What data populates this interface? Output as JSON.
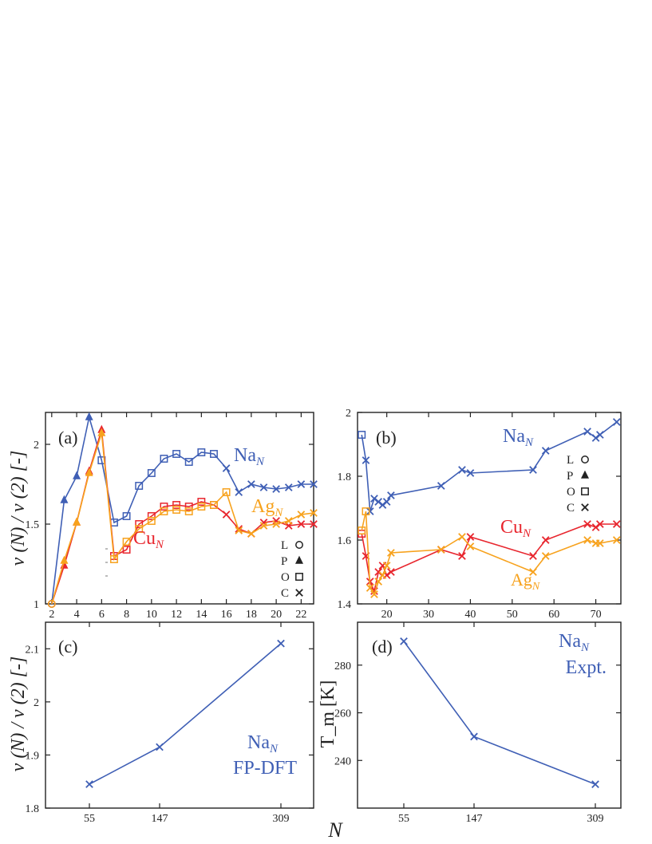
{
  "shared_xlabel": "N",
  "legend": {
    "entries": [
      {
        "label": "L",
        "marker": "circle"
      },
      {
        "label": "P",
        "marker": "triangle"
      },
      {
        "label": "O",
        "marker": "square"
      },
      {
        "label": "C",
        "marker": "cross"
      }
    ]
  },
  "colors": {
    "Na": "#3f5fb5",
    "Cu": "#e8262e",
    "Ag": "#f7a21d",
    "axis": "#222222"
  },
  "chart_data": [
    {
      "panel": "(a)",
      "type": "line",
      "ylabel": "v (N) / v (2) [-]",
      "xlim": [
        1.5,
        23
      ],
      "ylim": [
        1,
        2.2
      ],
      "xticks": [
        2,
        4,
        6,
        8,
        10,
        12,
        14,
        16,
        18,
        20,
        22
      ],
      "yticks": [
        1,
        1.5,
        2
      ],
      "series": [
        {
          "name": "Na",
          "color": "#3f5fb5",
          "x": [
            2,
            3,
            4,
            5,
            6,
            7,
            8,
            9,
            10,
            11,
            12,
            13,
            14,
            15,
            16,
            17,
            18,
            19,
            20,
            21,
            22,
            23
          ],
          "y": [
            1.0,
            1.65,
            1.8,
            2.17,
            1.9,
            1.51,
            1.55,
            1.74,
            1.82,
            1.91,
            1.94,
            1.89,
            1.95,
            1.94,
            1.85,
            1.7,
            1.75,
            1.73,
            1.72,
            1.73,
            1.75,
            1.75
          ],
          "markers": [
            "circle",
            "triangle",
            "triangle",
            "triangle",
            "square",
            "square",
            "square",
            "square",
            "square",
            "square",
            "square",
            "square",
            "square",
            "square",
            "cross",
            "cross",
            "cross",
            "cross",
            "cross",
            "cross",
            "cross",
            "cross"
          ]
        },
        {
          "name": "Cu",
          "color": "#e8262e",
          "x": [
            2,
            3,
            4,
            5,
            6,
            7,
            8,
            9,
            10,
            11,
            12,
            13,
            14,
            15,
            16,
            17,
            18,
            19,
            20,
            21,
            22,
            23
          ],
          "y": [
            1.0,
            1.24,
            1.51,
            1.83,
            2.09,
            1.3,
            1.34,
            1.5,
            1.55,
            1.61,
            1.62,
            1.61,
            1.64,
            1.62,
            1.56,
            1.47,
            1.44,
            1.51,
            1.52,
            1.49,
            1.5,
            1.5
          ],
          "markers": [
            "circle",
            "triangle",
            "triangle",
            "triangle",
            "triangle",
            "square",
            "square",
            "square",
            "square",
            "square",
            "square",
            "square",
            "square",
            "square",
            "cross",
            "cross",
            "cross",
            "cross",
            "cross",
            "cross",
            "cross",
            "cross"
          ]
        },
        {
          "name": "Ag",
          "color": "#f7a21d",
          "x": [
            2,
            3,
            4,
            5,
            6,
            7,
            8,
            9,
            10,
            11,
            12,
            13,
            14,
            15,
            16,
            17,
            18,
            19,
            20,
            21,
            22,
            23
          ],
          "y": [
            1.0,
            1.27,
            1.51,
            1.82,
            2.07,
            1.28,
            1.39,
            1.47,
            1.52,
            1.58,
            1.59,
            1.58,
            1.61,
            1.62,
            1.7,
            1.46,
            1.44,
            1.49,
            1.5,
            1.52,
            1.56,
            1.57
          ],
          "markers": [
            "circle",
            "triangle",
            "triangle",
            "triangle",
            "triangle",
            "square",
            "square",
            "square",
            "square",
            "square",
            "square",
            "square",
            "square",
            "square",
            "square",
            "cross",
            "cross",
            "cross",
            "cross",
            "cross",
            "cross",
            "cross"
          ]
        }
      ],
      "annotations": {
        "panel": "(a)",
        "Na": "Na",
        "Cu": "Cu",
        "Ag": "Ag",
        "subscript": "N"
      }
    },
    {
      "panel": "(b)",
      "type": "line",
      "xlim": [
        13,
        76
      ],
      "ylim": [
        1.4,
        2.0
      ],
      "xticks": [
        20,
        30,
        40,
        50,
        60,
        70
      ],
      "yticks": [
        1.4,
        1.6,
        1.8,
        2
      ],
      "series": [
        {
          "name": "Na",
          "color": "#3f5fb5",
          "x": [
            14,
            15,
            16,
            17,
            18,
            19,
            20,
            21,
            33,
            38,
            40,
            55,
            58,
            68,
            70,
            71,
            75
          ],
          "y": [
            1.93,
            1.85,
            1.69,
            1.73,
            1.72,
            1.71,
            1.72,
            1.74,
            1.77,
            1.82,
            1.81,
            1.82,
            1.88,
            1.94,
            1.92,
            1.93,
            1.97
          ],
          "markers": [
            "square",
            "cross",
            "cross",
            "cross",
            "cross",
            "cross",
            "cross",
            "cross",
            "cross",
            "cross",
            "cross",
            "cross",
            "cross",
            "cross",
            "cross",
            "cross",
            "cross"
          ]
        },
        {
          "name": "Cu",
          "color": "#e8262e",
          "x": [
            14,
            15,
            16,
            17,
            18,
            19,
            20,
            21,
            33,
            38,
            40,
            55,
            58,
            68,
            70,
            71,
            75
          ],
          "y": [
            1.62,
            1.55,
            1.47,
            1.44,
            1.5,
            1.52,
            1.49,
            1.5,
            1.57,
            1.55,
            1.61,
            1.55,
            1.6,
            1.65,
            1.64,
            1.65,
            1.65
          ],
          "markers": [
            "square",
            "cross",
            "cross",
            "cross",
            "cross",
            "cross",
            "cross",
            "cross",
            "cross",
            "cross",
            "cross",
            "cross",
            "cross",
            "cross",
            "cross",
            "cross",
            "cross"
          ]
        },
        {
          "name": "Ag",
          "color": "#f7a21d",
          "x": [
            14,
            15,
            16,
            17,
            18,
            19,
            20,
            21,
            33,
            38,
            40,
            55,
            58,
            68,
            70,
            71,
            75
          ],
          "y": [
            1.63,
            1.69,
            1.45,
            1.43,
            1.47,
            1.49,
            1.52,
            1.56,
            1.57,
            1.61,
            1.58,
            1.5,
            1.55,
            1.6,
            1.59,
            1.59,
            1.6
          ],
          "markers": [
            "square",
            "square",
            "cross",
            "cross",
            "cross",
            "cross",
            "cross",
            "cross",
            "cross",
            "cross",
            "cross",
            "cross",
            "cross",
            "cross",
            "cross",
            "cross",
            "cross"
          ]
        }
      ],
      "annotations": {
        "panel": "(b)",
        "Na": "Na",
        "Cu": "Cu",
        "Ag": "Ag",
        "subscript": "N"
      }
    },
    {
      "panel": "(c)",
      "type": "line",
      "ylabel": "v (N) / v (2) [-]",
      "xcategories": [
        "55",
        "147",
        "309"
      ],
      "ylim": [
        1.8,
        2.15
      ],
      "yticks": [
        1.8,
        1.9,
        2,
        2.1
      ],
      "series": [
        {
          "name": "Na",
          "color": "#3f5fb5",
          "y": [
            1.845,
            1.915,
            2.11
          ],
          "markers": [
            "cross",
            "cross",
            "cross"
          ]
        }
      ],
      "annotations": {
        "panel": "(c)",
        "line1": "Na",
        "subscript": "N",
        "line2": "FP-DFT"
      }
    },
    {
      "panel": "(d)",
      "type": "line",
      "ylabel": "T_m [K]",
      "xcategories": [
        "55",
        "147",
        "309"
      ],
      "ylim": [
        220,
        298
      ],
      "yticks": [
        240,
        260,
        280
      ],
      "series": [
        {
          "name": "Na",
          "color": "#3f5fb5",
          "y": [
            290,
            250,
            230
          ],
          "markers": [
            "cross",
            "cross",
            "cross"
          ]
        }
      ],
      "annotations": {
        "panel": "(d)",
        "line1": "Na",
        "subscript": "N",
        "line2": "Expt."
      }
    }
  ]
}
